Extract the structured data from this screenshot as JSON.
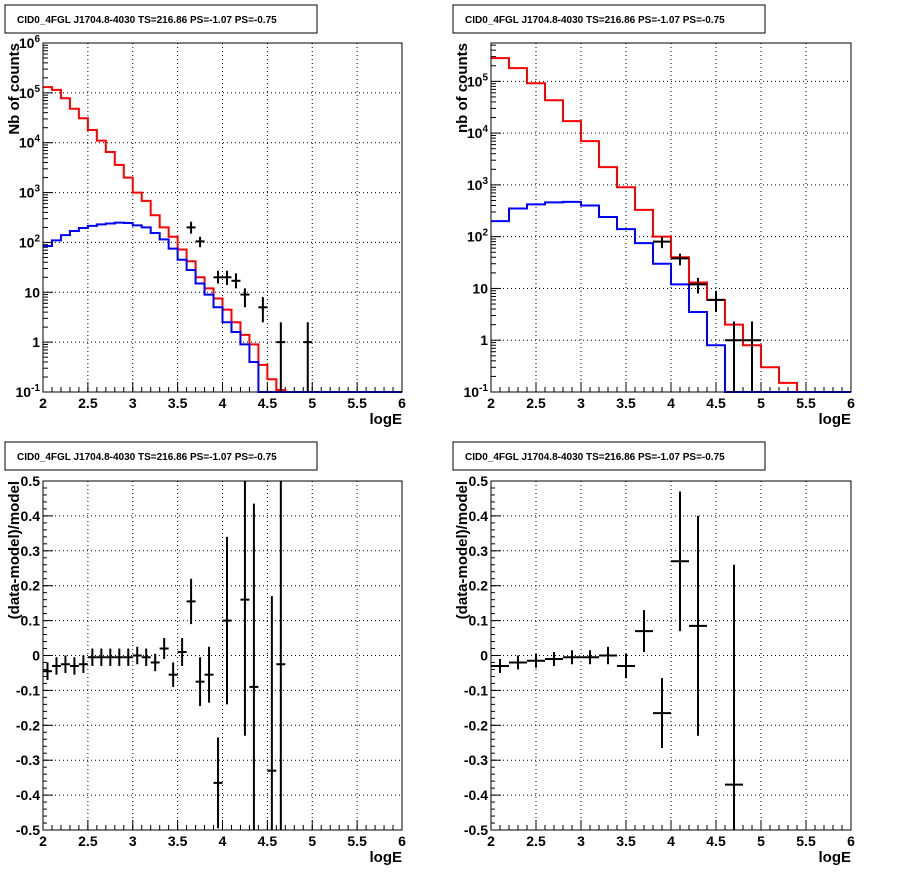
{
  "chart_data": [
    {
      "type": "line",
      "title": "CID0_4FGL J1704.8-4030 TS=216.86 PS=-1.07 PS=-0.75",
      "xlabel": "logE",
      "ylabel": "Nb of counts",
      "scale_y": "log",
      "xlim": [
        2,
        6
      ],
      "ylim": [
        0.1,
        1000000
      ],
      "grid": true,
      "x_ticks": [
        "2",
        "2.5",
        "3",
        "3.5",
        "4",
        "4.5",
        "5",
        "5.5",
        "6"
      ],
      "y_ticks": [
        "10^-1",
        "1",
        "10",
        "10^2",
        "10^3",
        "10^4",
        "10^5",
        "10^6"
      ],
      "bin_edges": [
        2.0,
        2.1,
        2.2,
        2.3,
        2.4,
        2.5,
        2.6,
        2.7,
        2.8,
        2.9,
        3.0,
        3.1,
        3.2,
        3.3,
        3.4,
        3.5,
        3.6,
        3.7,
        3.8,
        3.9,
        4.0,
        4.1,
        4.2,
        4.3,
        4.4,
        4.5,
        4.6,
        4.7,
        4.8,
        4.9,
        5.0,
        5.1,
        5.2,
        5.3,
        5.4,
        5.5,
        5.6,
        5.7,
        5.8,
        5.9,
        6.0
      ],
      "series": [
        {
          "color": "#ff0000",
          "style": "hist",
          "values": [
            130000,
            115000,
            78000,
            48000,
            31000,
            18000,
            11000,
            6500,
            3600,
            2000,
            1000,
            680,
            350,
            200,
            130,
            72,
            42,
            20,
            12,
            7.5,
            4.5,
            2.5,
            1.4,
            0.9,
            0.35,
            0.18,
            0.11,
            0.1,
            0.1,
            0.1,
            0.1,
            0.1,
            0.1,
            0.1,
            0.1,
            0.1,
            0.1,
            0.1,
            0.1,
            0.1
          ]
        },
        {
          "color": "#0000ff",
          "style": "hist",
          "values": [
            85,
            110,
            140,
            170,
            195,
            215,
            230,
            240,
            250,
            245,
            220,
            200,
            155,
            115,
            75,
            45,
            28,
            15,
            9,
            5,
            2.5,
            1.6,
            0.9,
            0.4,
            0.1,
            0.1,
            0.1,
            0.1,
            0.1,
            0.1,
            0.1,
            0.1,
            0.1,
            0.1,
            0.1,
            0.1,
            0.1,
            0.1,
            0.1,
            0.1
          ]
        },
        {
          "color": "#000000",
          "style": "points",
          "xerr": 0.05,
          "points": [
            [
              3.65,
              200,
              150,
              260
            ],
            [
              3.75,
              105,
              80,
              130
            ],
            [
              3.95,
              20,
              15,
              27
            ],
            [
              4.05,
              20,
              14,
              27
            ],
            [
              4.15,
              17,
              12,
              24
            ],
            [
              4.25,
              9,
              5,
              12
            ],
            [
              4.45,
              5,
              2.5,
              8
            ],
            [
              4.65,
              1,
              0.1,
              2.5
            ],
            [
              4.95,
              1,
              0.1,
              2.5
            ]
          ]
        }
      ]
    },
    {
      "type": "line",
      "title": "CID0_4FGL J1704.8-4030 TS=216.86 PS=-1.07 PS=-0.75",
      "xlabel": "logE",
      "ylabel": "nb of counts",
      "scale_y": "log",
      "xlim": [
        2,
        6
      ],
      "ylim": [
        0.1,
        550000
      ],
      "grid": true,
      "x_ticks": [
        "2",
        "2.5",
        "3",
        "3.5",
        "4",
        "4.5",
        "5",
        "5.5",
        "6"
      ],
      "y_ticks": [
        "10^-1",
        "1",
        "10",
        "10^2",
        "10^3",
        "10^4",
        "10^5"
      ],
      "bin_edges": [
        2.0,
        2.2,
        2.4,
        2.6,
        2.8,
        3.0,
        3.2,
        3.4,
        3.6,
        3.8,
        4.0,
        4.2,
        4.4,
        4.6,
        4.8,
        5.0,
        5.2,
        5.4,
        5.6,
        5.8,
        6.0
      ],
      "series": [
        {
          "color": "#ff0000",
          "style": "hist",
          "values": [
            280000,
            180000,
            92000,
            43000,
            17000,
            7000,
            2200,
            900,
            330,
            100,
            40,
            13,
            6,
            2,
            0.8,
            0.3,
            0.15,
            0.1,
            0.1,
            0.1
          ]
        },
        {
          "color": "#0000ff",
          "style": "hist",
          "values": [
            200,
            350,
            420,
            460,
            470,
            400,
            240,
            140,
            75,
            30,
            12,
            3.5,
            0.8,
            0.1,
            0.1,
            0.1,
            0.1,
            0.1,
            0.1,
            0.1
          ]
        },
        {
          "color": "#000000",
          "style": "points",
          "xerr": 0.1,
          "points": [
            [
              3.9,
              80,
              60,
              100
            ],
            [
              4.1,
              38,
              28,
              47
            ],
            [
              4.3,
              12,
              8,
              16
            ],
            [
              4.5,
              6,
              3.5,
              9
            ],
            [
              4.7,
              1,
              0.1,
              2.3
            ],
            [
              4.9,
              1,
              0.1,
              2.3
            ]
          ]
        }
      ]
    },
    {
      "type": "scatter",
      "title": "CID0_4FGL J1704.8-4030 TS=216.86 PS=-1.07 PS=-0.75",
      "xlabel": "logE",
      "ylabel": "(data-model)/model",
      "xlim": [
        2,
        6
      ],
      "ylim": [
        -0.5,
        0.5
      ],
      "grid": true,
      "x_ticks": [
        "2",
        "2.5",
        "3",
        "3.5",
        "4",
        "4.5",
        "5",
        "5.5",
        "6"
      ],
      "y_ticks": [
        "-0.5",
        "-0.4",
        "-0.3",
        "-0.2",
        "-0.1",
        "0",
        "0.1",
        "0.2",
        "0.3",
        "0.4",
        "0.5"
      ],
      "xerr": 0.05,
      "points": [
        [
          2.05,
          -0.045,
          0.025
        ],
        [
          2.15,
          -0.03,
          0.025
        ],
        [
          2.25,
          -0.025,
          0.025
        ],
        [
          2.35,
          -0.03,
          0.025
        ],
        [
          2.45,
          -0.025,
          0.025
        ],
        [
          2.55,
          -0.005,
          0.025
        ],
        [
          2.65,
          -0.005,
          0.025
        ],
        [
          2.75,
          -0.005,
          0.025
        ],
        [
          2.85,
          -0.005,
          0.025
        ],
        [
          2.95,
          -0.005,
          0.025
        ],
        [
          3.05,
          0.0,
          0.025
        ],
        [
          3.15,
          -0.005,
          0.025
        ],
        [
          3.25,
          -0.02,
          0.025
        ],
        [
          3.35,
          0.02,
          0.03
        ],
        [
          3.45,
          -0.055,
          0.035
        ],
        [
          3.55,
          0.01,
          0.04
        ],
        [
          3.65,
          0.155,
          0.065
        ],
        [
          3.75,
          -0.075,
          0.07
        ],
        [
          3.85,
          -0.055,
          0.08
        ],
        [
          3.95,
          -0.365,
          0.13
        ],
        [
          4.05,
          0.1,
          0.24
        ],
        [
          4.25,
          0.16,
          0.39
        ],
        [
          4.35,
          -0.09,
          0.525
        ],
        [
          4.55,
          -0.33,
          0.5
        ],
        [
          4.65,
          -0.025,
          0.6
        ]
      ]
    },
    {
      "type": "scatter",
      "title": "CID0_4FGL J1704.8-4030 TS=216.86 PS=-1.07 PS=-0.75",
      "xlabel": "logE",
      "ylabel": "(data-model)/model",
      "xlim": [
        2,
        6
      ],
      "ylim": [
        -0.5,
        0.5
      ],
      "grid": true,
      "x_ticks": [
        "2",
        "2.5",
        "3",
        "3.5",
        "4",
        "4.5",
        "5",
        "5.5",
        "6"
      ],
      "y_ticks": [
        "-0.5",
        "-0.4",
        "-0.3",
        "-0.2",
        "-0.1",
        "0",
        "0.1",
        "0.2",
        "0.3",
        "0.4",
        "0.5"
      ],
      "xerr": 0.1,
      "points": [
        [
          2.1,
          -0.03,
          0.02
        ],
        [
          2.3,
          -0.02,
          0.02
        ],
        [
          2.5,
          -0.015,
          0.02
        ],
        [
          2.7,
          -0.01,
          0.02
        ],
        [
          2.9,
          -0.005,
          0.02
        ],
        [
          3.1,
          -0.005,
          0.02
        ],
        [
          3.3,
          0.0,
          0.025
        ],
        [
          3.5,
          -0.03,
          0.035
        ],
        [
          3.7,
          0.07,
          0.06
        ],
        [
          3.9,
          -0.165,
          0.1
        ],
        [
          4.1,
          0.27,
          0.2
        ],
        [
          4.3,
          0.085,
          0.315
        ],
        [
          4.7,
          -0.37,
          0.63
        ]
      ]
    }
  ]
}
